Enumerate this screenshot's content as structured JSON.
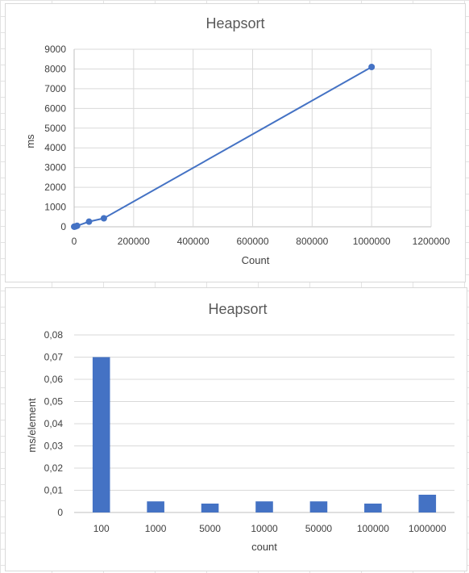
{
  "chart_data": [
    {
      "type": "scatter",
      "title": "Heapsort",
      "xlabel": "Count",
      "ylabel": "ms",
      "x": [
        100,
        1000,
        5000,
        10000,
        50000,
        100000,
        1000000
      ],
      "y": [
        7,
        5,
        20,
        50,
        260,
        430,
        8100
      ],
      "xlim": [
        0,
        1200000
      ],
      "ylim": [
        0,
        9000
      ],
      "xticks": [
        "0",
        "200000",
        "400000",
        "600000",
        "800000",
        "1000000",
        "1200000"
      ],
      "yticks": [
        "0",
        "1000",
        "2000",
        "3000",
        "4000",
        "5000",
        "6000",
        "7000",
        "8000",
        "9000"
      ],
      "grid": true,
      "line_color": "#4472c4"
    },
    {
      "type": "bar",
      "title": "Heapsort",
      "xlabel": "count",
      "ylabel": "ms/element",
      "categories": [
        "100",
        "1000",
        "5000",
        "10000",
        "50000",
        "100000",
        "1000000"
      ],
      "values": [
        0.07,
        0.005,
        0.004,
        0.005,
        0.005,
        0.004,
        0.008
      ],
      "ylim": [
        0,
        0.08
      ],
      "yticks": [
        "0",
        "0,01",
        "0,02",
        "0,03",
        "0,04",
        "0,05",
        "0,06",
        "0,07",
        "0,08"
      ],
      "grid": true,
      "bar_color": "#4472c4"
    }
  ]
}
